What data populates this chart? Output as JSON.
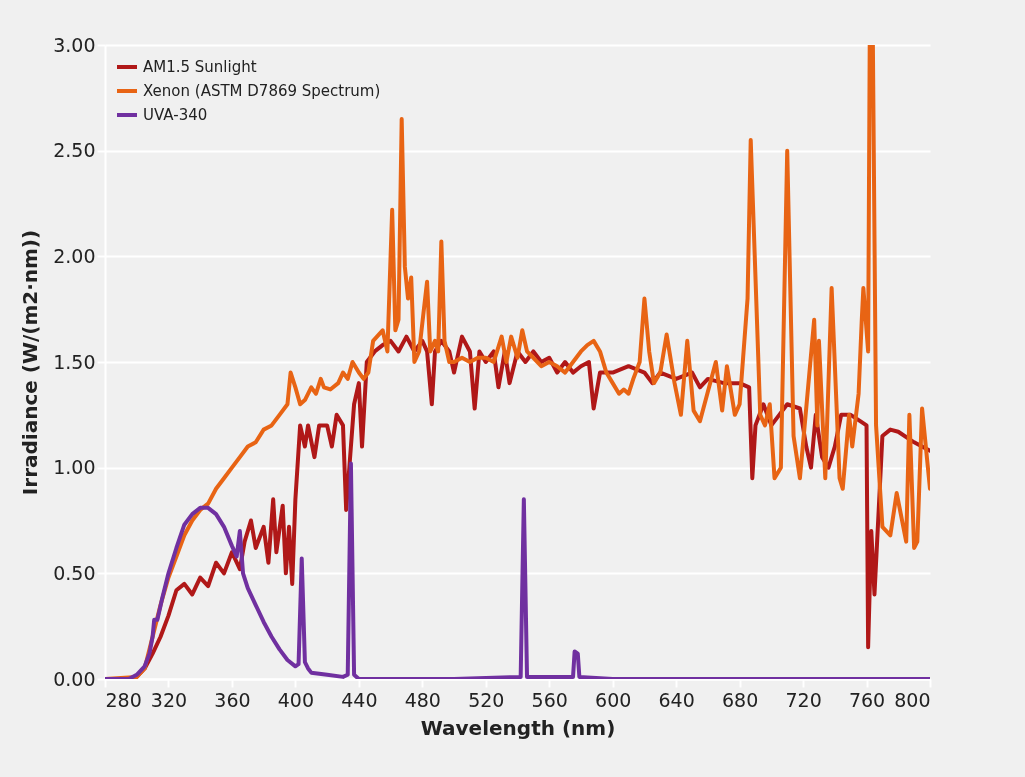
{
  "chart_data": {
    "type": "line",
    "xlabel": "Wavelength (nm)",
    "ylabel": "Irradiance (W/(m2·nm))",
    "xlim": [
      280,
      800
    ],
    "xticks": [
      280,
      320,
      360,
      400,
      440,
      480,
      520,
      560,
      600,
      640,
      680,
      720,
      760,
      800
    ],
    "ylim": [
      0,
      3
    ],
    "yticks": [
      {
        "value": 0,
        "label": "0.00"
      },
      {
        "value": 0.5,
        "label": "0.50"
      },
      {
        "value": 1,
        "label": "1.00"
      },
      {
        "value": 1.5,
        "label": "1.50"
      },
      {
        "value": 2,
        "label": "2.00"
      },
      {
        "value": 2.5,
        "label": "2.50"
      },
      {
        "value": 3,
        "label": "3.00"
      }
    ],
    "grid": "y",
    "legend": "top left",
    "line_style": "solid",
    "marker": "none",
    "series": [
      {
        "name": "AM1.5 Sunlight",
        "color": "#b01818",
        "x": [
          280,
          295,
          300,
          305,
          310,
          315,
          320,
          325,
          330,
          335,
          340,
          345,
          350,
          355,
          360,
          365,
          368,
          372,
          375,
          380,
          383,
          386,
          388,
          392,
          394,
          396,
          398,
          400,
          403,
          406,
          408,
          412,
          415,
          420,
          423,
          426,
          430,
          432,
          434,
          437,
          440,
          442,
          445,
          450,
          455,
          460,
          465,
          470,
          475,
          480,
          483,
          486,
          488,
          492,
          497,
          500,
          505,
          510,
          513,
          516,
          520,
          525,
          528,
          532,
          535,
          540,
          545,
          550,
          555,
          560,
          565,
          570,
          575,
          580,
          585,
          588,
          592,
          600,
          610,
          620,
          625,
          630,
          640,
          650,
          655,
          660,
          670,
          680,
          686,
          688,
          690,
          695,
          700,
          705,
          710,
          718,
          722,
          725,
          728,
          732,
          736,
          740,
          744,
          750,
          756,
          760,
          761,
          763,
          765,
          770,
          775,
          780,
          790,
          800
        ],
        "values": [
          0,
          0,
          0.01,
          0.05,
          0.12,
          0.2,
          0.3,
          0.42,
          0.45,
          0.4,
          0.48,
          0.44,
          0.55,
          0.5,
          0.6,
          0.52,
          0.65,
          0.75,
          0.62,
          0.72,
          0.55,
          0.85,
          0.6,
          0.82,
          0.5,
          0.72,
          0.45,
          0.85,
          1.2,
          1.1,
          1.2,
          1.05,
          1.2,
          1.2,
          1.1,
          1.25,
          1.2,
          0.8,
          1.0,
          1.3,
          1.4,
          1.1,
          1.5,
          1.55,
          1.58,
          1.6,
          1.55,
          1.62,
          1.55,
          1.6,
          1.55,
          1.3,
          1.55,
          1.6,
          1.55,
          1.45,
          1.62,
          1.55,
          1.28,
          1.55,
          1.5,
          1.55,
          1.38,
          1.55,
          1.4,
          1.55,
          1.5,
          1.55,
          1.5,
          1.52,
          1.45,
          1.5,
          1.45,
          1.48,
          1.5,
          1.28,
          1.45,
          1.45,
          1.48,
          1.45,
          1.4,
          1.45,
          1.42,
          1.45,
          1.38,
          1.42,
          1.4,
          1.4,
          1.38,
          0.95,
          1.2,
          1.3,
          1.2,
          1.25,
          1.3,
          1.28,
          1.1,
          1.0,
          1.25,
          1.05,
          1.0,
          1.1,
          1.25,
          1.25,
          1.22,
          1.2,
          0.15,
          0.7,
          0.4,
          1.15,
          1.18,
          1.17,
          1.12,
          1.08
        ]
      },
      {
        "name": "Xenon (ASTM D7869 Spectrum)",
        "color": "#e86414",
        "x": [
          280,
          300,
          305,
          310,
          315,
          320,
          325,
          330,
          335,
          340,
          345,
          350,
          355,
          360,
          365,
          370,
          375,
          380,
          385,
          390,
          395,
          397,
          400,
          403,
          406,
          410,
          413,
          416,
          418,
          422,
          427,
          430,
          433,
          436,
          440,
          443,
          446,
          449,
          455,
          458,
          461,
          463,
          465,
          467,
          469,
          471,
          473,
          475,
          478,
          481,
          483,
          485,
          488,
          490,
          492,
          494,
          497,
          500,
          505,
          510,
          515,
          520,
          525,
          530,
          533,
          536,
          540,
          543,
          546,
          550,
          555,
          560,
          565,
          570,
          575,
          580,
          584,
          588,
          592,
          596,
          600,
          604,
          607,
          610,
          613,
          617,
          620,
          623,
          626,
          630,
          634,
          639,
          643,
          647,
          651,
          655,
          665,
          669,
          672,
          677,
          680,
          685,
          687,
          693,
          696,
          699,
          702,
          706,
          710,
          714,
          718,
          727,
          729,
          730,
          734,
          738,
          743,
          745,
          749,
          751,
          755,
          757,
          758,
          761,
          762,
          764,
          766,
          770,
          775,
          779,
          785,
          787,
          790,
          792,
          795,
          800
        ],
        "values": [
          0,
          0.01,
          0.05,
          0.2,
          0.35,
          0.48,
          0.58,
          0.68,
          0.75,
          0.8,
          0.83,
          0.9,
          0.95,
          1.0,
          1.05,
          1.1,
          1.12,
          1.18,
          1.2,
          1.25,
          1.3,
          1.45,
          1.38,
          1.3,
          1.32,
          1.38,
          1.35,
          1.42,
          1.38,
          1.37,
          1.4,
          1.45,
          1.42,
          1.5,
          1.45,
          1.42,
          1.45,
          1.6,
          1.65,
          1.55,
          2.22,
          1.65,
          1.7,
          2.65,
          1.95,
          1.8,
          1.9,
          1.5,
          1.55,
          1.75,
          1.88,
          1.55,
          1.6,
          1.55,
          2.07,
          1.6,
          1.5,
          1.5,
          1.52,
          1.5,
          1.52,
          1.52,
          1.5,
          1.62,
          1.5,
          1.62,
          1.52,
          1.65,
          1.55,
          1.52,
          1.48,
          1.5,
          1.48,
          1.45,
          1.5,
          1.55,
          1.58,
          1.6,
          1.55,
          1.45,
          1.4,
          1.35,
          1.37,
          1.35,
          1.42,
          1.5,
          1.8,
          1.55,
          1.4,
          1.45,
          1.63,
          1.4,
          1.25,
          1.6,
          1.27,
          1.22,
          1.5,
          1.27,
          1.48,
          1.25,
          1.3,
          1.8,
          2.55,
          1.25,
          1.2,
          1.3,
          0.95,
          1.0,
          2.5,
          1.15,
          0.95,
          1.7,
          1.2,
          1.6,
          0.95,
          1.85,
          0.95,
          0.9,
          1.25,
          1.1,
          1.35,
          1.7,
          1.85,
          1.55,
          3.0,
          3.0,
          1.2,
          0.72,
          0.68,
          0.88,
          0.65,
          1.25,
          0.62,
          0.65,
          1.28,
          0.9
        ]
      },
      {
        "name": "UVA-340",
        "color": "#7030a0",
        "x": [
          280,
          295,
          300,
          305,
          308,
          310,
          311,
          313,
          316,
          320,
          325,
          330,
          335,
          340,
          345,
          350,
          355,
          360,
          363,
          365,
          367,
          370,
          375,
          380,
          385,
          390,
          395,
          400,
          402,
          404,
          406,
          408,
          410,
          420,
          430,
          433,
          435,
          437,
          440,
          500,
          542,
          544,
          546,
          575,
          576,
          578,
          579,
          600,
          800
        ],
        "values": [
          0,
          0,
          0.02,
          0.06,
          0.12,
          0.2,
          0.28,
          0.28,
          0.38,
          0.5,
          0.62,
          0.73,
          0.78,
          0.81,
          0.81,
          0.78,
          0.72,
          0.63,
          0.58,
          0.7,
          0.5,
          0.43,
          0.35,
          0.27,
          0.2,
          0.14,
          0.09,
          0.06,
          0.07,
          0.57,
          0.08,
          0.05,
          0.03,
          0.02,
          0.01,
          0.02,
          1.02,
          0.02,
          0,
          0,
          0.01,
          0.85,
          0.01,
          0.01,
          0.13,
          0.12,
          0.01,
          0,
          0
        ]
      }
    ]
  }
}
